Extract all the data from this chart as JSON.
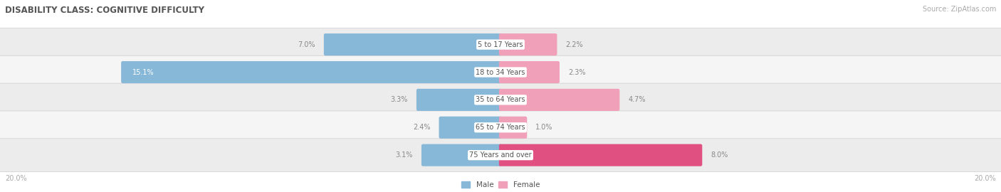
{
  "title": "DISABILITY CLASS: COGNITIVE DIFFICULTY",
  "source": "Source: ZipAtlas.com",
  "categories": [
    "5 to 17 Years",
    "18 to 34 Years",
    "35 to 64 Years",
    "65 to 74 Years",
    "75 Years and over"
  ],
  "male_values": [
    7.0,
    15.1,
    3.3,
    2.4,
    3.1
  ],
  "female_values": [
    2.2,
    2.3,
    4.7,
    1.0,
    8.0
  ],
  "max_val": 20.0,
  "male_bar_color": "#88b8d8",
  "female_bar_color": "#f0a0b8",
  "female_bar_color_last": "#e05080",
  "row_bg_even": "#ececec",
  "row_bg_odd": "#f5f5f5",
  "center_label_color": "#555555",
  "axis_label_color": "#aaaaaa",
  "title_color": "#555555",
  "source_color": "#aaaaaa",
  "legend_male_color": "#88b8d8",
  "legend_female_color": "#f0a0b8",
  "bg_color": "#ffffff"
}
